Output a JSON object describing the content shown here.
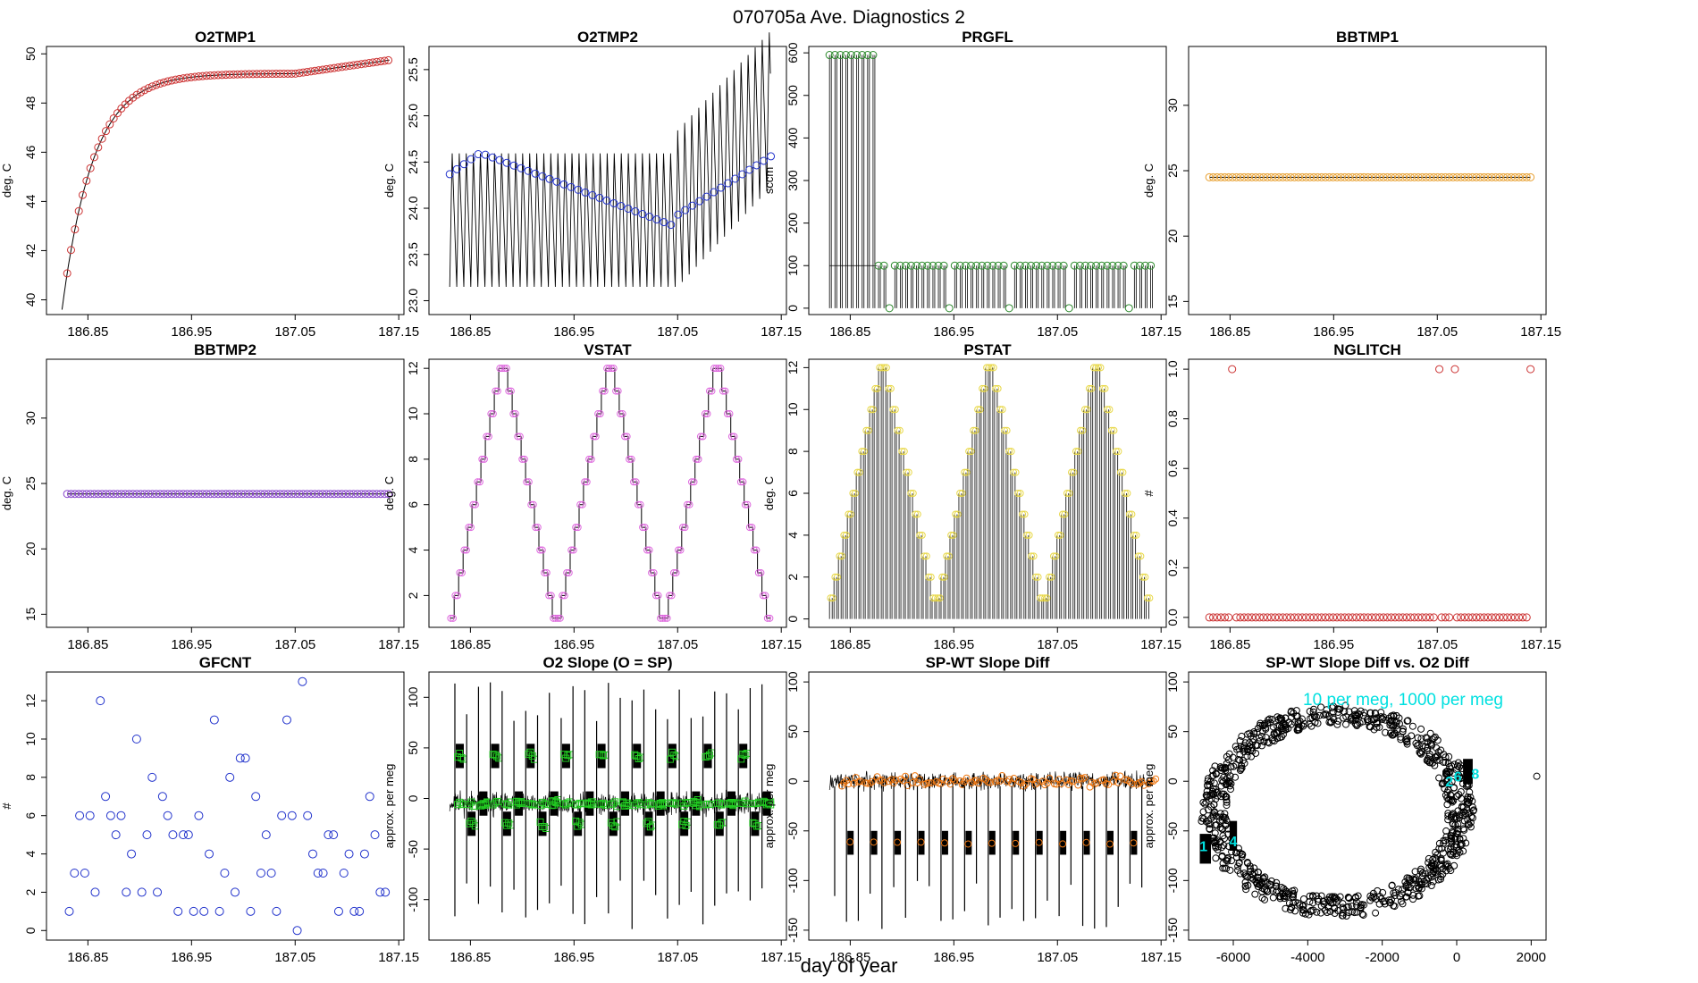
{
  "page": {
    "title": "070705a   Ave. Diagnostics 2",
    "xlabel": "day of year"
  },
  "chart_data": [
    {
      "id": "o2tmp1",
      "type": "line",
      "title": "O2TMP1",
      "ylabel": "deg. C",
      "xlim": [
        186.81,
        187.155
      ],
      "ylim": [
        39.4,
        50.3
      ],
      "xticks": [
        186.85,
        186.95,
        187.05,
        187.15
      ],
      "xticklabels": [
        "186.85",
        "186.95",
        "187.05",
        "187.15"
      ],
      "yticks": [
        40,
        42,
        44,
        46,
        48,
        50
      ],
      "yticklabels": [
        "40",
        "42",
        "44",
        "46",
        "48",
        "50"
      ],
      "pointColor": "#cc3333",
      "pointShape": "circle",
      "pointCount": 84,
      "model": "o2tmp1",
      "series": [
        {
          "name": "O2TMP1",
          "x_start": 186.83,
          "x_end": 187.14,
          "y_start": 40.3,
          "y_end": 49.7
        }
      ]
    },
    {
      "id": "o2tmp2",
      "type": "line",
      "title": "O2TMP2",
      "ylabel": "deg. C",
      "xlim": [
        186.81,
        187.155
      ],
      "ylim": [
        22.85,
        25.75
      ],
      "xticks": [
        186.85,
        186.95,
        187.05,
        187.15
      ],
      "xticklabels": [
        "186.85",
        "186.95",
        "187.05",
        "187.15"
      ],
      "yticks": [
        23.0,
        23.5,
        24.0,
        24.5,
        25.0,
        25.5
      ],
      "yticklabels": [
        "23.0",
        "23.5",
        "24.0",
        "24.5",
        "25.0",
        "25.5"
      ],
      "pointColor": "#2233cc",
      "pointShape": "circle",
      "pointCount": 46,
      "model": "o2tmp2",
      "series": [
        {
          "name": "O2TMP2",
          "x_start": 186.83,
          "x_end": 187.14,
          "y_min": 22.9,
          "y_max": 25.6
        }
      ]
    },
    {
      "id": "prgfl",
      "type": "line",
      "title": "PRGFL",
      "ylabel": "sccm",
      "xlim": [
        186.81,
        187.155
      ],
      "ylim": [
        -15,
        615
      ],
      "xticks": [
        186.85,
        186.95,
        187.05,
        187.15
      ],
      "xticklabels": [
        "186.85",
        "186.95",
        "187.05",
        "187.15"
      ],
      "yticks": [
        0,
        100,
        200,
        300,
        400,
        500,
        600
      ],
      "yticklabels": [
        "0",
        "100",
        "200",
        "300",
        "400",
        "500",
        "600"
      ],
      "pointColor": "#2e8b2e",
      "pointShape": "circle",
      "pointCount": 60,
      "model": "prgfl",
      "series": [
        {
          "name": "PRGFL",
          "high_phase": [
            186.83,
            186.875
          ],
          "high_value": 595,
          "low_value": 100
        }
      ]
    },
    {
      "id": "bbtmp1",
      "type": "scatter",
      "title": "BBTMP1",
      "ylabel": "deg. C",
      "xlim": [
        186.81,
        187.155
      ],
      "ylim": [
        14,
        34.5
      ],
      "xticks": [
        186.85,
        186.95,
        187.05,
        187.15
      ],
      "xticklabels": [
        "186.85",
        "186.95",
        "187.05",
        "187.15"
      ],
      "yticks": [
        15,
        20,
        25,
        30
      ],
      "yticklabels": [
        "15",
        "20",
        "25",
        "30"
      ],
      "pointColor": "#e8a030",
      "pointShape": "circle",
      "pointCount": 84,
      "model": "flat",
      "series": [
        {
          "name": "BBTMP1",
          "value": 24.5
        }
      ]
    },
    {
      "id": "bbtmp2",
      "type": "scatter",
      "title": "BBTMP2",
      "ylabel": "deg. C",
      "xlim": [
        186.81,
        187.155
      ],
      "ylim": [
        14,
        34.5
      ],
      "xticks": [
        186.85,
        186.95,
        187.05,
        187.15
      ],
      "xticklabels": [
        "186.85",
        "186.95",
        "187.05",
        "187.15"
      ],
      "yticks": [
        15,
        20,
        25,
        30
      ],
      "yticklabels": [
        "15",
        "20",
        "25",
        "30"
      ],
      "pointColor": "#8844cc",
      "pointShape": "circle",
      "pointCount": 84,
      "model": "flat",
      "series": [
        {
          "name": "BBTMP2",
          "value": 24.2
        }
      ]
    },
    {
      "id": "vstat",
      "type": "line",
      "title": "VSTAT",
      "ylabel": "deg. C",
      "xlim": [
        186.81,
        187.155
      ],
      "ylim": [
        0.6,
        12.4
      ],
      "xticks": [
        186.85,
        186.95,
        187.05,
        187.15
      ],
      "xticklabels": [
        "186.85",
        "186.95",
        "187.05",
        "187.15"
      ],
      "yticks": [
        2,
        4,
        6,
        8,
        10,
        12
      ],
      "yticklabels": [
        "2",
        "4",
        "6",
        "8",
        "10",
        "12"
      ],
      "pointColor": "#dd66dd",
      "pointShape": "circle",
      "pointCount": 72,
      "model": "vstat",
      "series": [
        {
          "name": "VSTAT",
          "cycle_start": 186.83,
          "cycle_length": 0.104,
          "min": 1,
          "max": 12
        }
      ]
    },
    {
      "id": "pstat",
      "type": "line",
      "title": "PSTAT",
      "ylabel": "deg. C",
      "xlim": [
        186.81,
        187.155
      ],
      "ylim": [
        -0.4,
        12.4
      ],
      "xticks": [
        186.85,
        186.95,
        187.05,
        187.15
      ],
      "xticklabels": [
        "186.85",
        "186.95",
        "187.05",
        "187.15"
      ],
      "yticks": [
        0,
        2,
        4,
        6,
        8,
        10,
        12
      ],
      "yticklabels": [
        "0",
        "2",
        "4",
        "6",
        "8",
        "10",
        "12"
      ],
      "pointColor": "#e8d84a",
      "pointShape": "circle",
      "pointCount": 72,
      "model": "pstat",
      "series": [
        {
          "name": "PSTAT",
          "cycle_start": 186.83,
          "cycle_length": 0.104,
          "min": 0,
          "max": 12
        }
      ]
    },
    {
      "id": "nglitch",
      "type": "scatter",
      "title": "NGLITCH",
      "ylabel": "#",
      "xlim": [
        186.81,
        187.155
      ],
      "ylim": [
        -0.04,
        1.04
      ],
      "xticks": [
        186.85,
        186.95,
        187.05,
        187.15
      ],
      "xticklabels": [
        "186.85",
        "186.95",
        "187.05",
        "187.15"
      ],
      "yticks": [
        0.0,
        0.2,
        0.4,
        0.6,
        0.8,
        1.0
      ],
      "yticklabels": [
        "0.0",
        "0.2",
        "0.4",
        "0.6",
        "0.8",
        "1.0"
      ],
      "pointColor": "#cc3333",
      "pointShape": "circle",
      "pointCount": 84,
      "model": "nglitch",
      "series": [
        {
          "name": "NGLITCH",
          "ones_at": [
            186.852,
            187.052,
            187.067,
            187.14
          ]
        }
      ]
    },
    {
      "id": "gfcnt",
      "type": "scatter",
      "title": "GFCNT",
      "ylabel": "#",
      "xlim": [
        186.81,
        187.155
      ],
      "ylim": [
        -0.5,
        13.5
      ],
      "xticks": [
        186.85,
        186.95,
        187.05,
        187.15
      ],
      "xticklabels": [
        "186.85",
        "186.95",
        "187.05",
        "187.15"
      ],
      "yticks": [
        0,
        2,
        4,
        6,
        8,
        10,
        12
      ],
      "yticklabels": [
        "0",
        "2",
        "4",
        "6",
        "8",
        "10",
        "12"
      ],
      "pointColor": "#2233cc",
      "pointShape": "circle",
      "model": "points",
      "series": [
        {
          "name": "GFCNT",
          "x": [
            186.832,
            186.837,
            186.842,
            186.847,
            186.852,
            186.857,
            186.862,
            186.867,
            186.872,
            186.877,
            186.882,
            186.887,
            186.892,
            186.897,
            186.902,
            186.907,
            186.912,
            186.917,
            186.922,
            186.927,
            186.932,
            186.937,
            186.942,
            186.947,
            186.952,
            186.957,
            186.962,
            186.967,
            186.972,
            186.977,
            186.982,
            186.987,
            186.992,
            186.997,
            187.002,
            187.007,
            187.012,
            187.017,
            187.022,
            187.027,
            187.032,
            187.037,
            187.042,
            187.047,
            187.052,
            187.057,
            187.062,
            187.067,
            187.072,
            187.077,
            187.082,
            187.087,
            187.092,
            187.097,
            187.102,
            187.107,
            187.112,
            187.117,
            187.122,
            187.127,
            187.132,
            187.137
          ],
          "y": [
            1,
            3,
            6,
            3,
            6,
            2,
            12,
            7,
            6,
            5,
            6,
            2,
            4,
            10,
            2,
            5,
            8,
            2,
            7,
            6,
            5,
            1,
            5,
            5,
            1,
            6,
            1,
            4,
            11,
            1,
            3,
            8,
            2,
            9,
            9,
            1,
            7,
            3,
            5,
            3,
            1,
            6,
            11,
            6,
            0,
            13,
            6,
            4,
            3,
            3,
            5,
            5,
            1,
            3,
            4,
            1,
            1,
            4,
            7,
            5,
            2,
            2
          ]
        }
      ]
    },
    {
      "id": "o2slope",
      "type": "line",
      "title": "O2 Slope (O = SP)",
      "ylabel": "approx. per meg",
      "xlim": [
        186.81,
        187.155
      ],
      "ylim": [
        -140,
        125
      ],
      "xticks": [
        186.85,
        186.95,
        187.05,
        187.15
      ],
      "xticklabels": [
        "186.85",
        "186.95",
        "187.05",
        "187.15"
      ],
      "yticks": [
        -100,
        -50,
        0,
        50,
        100
      ],
      "yticklabels": [
        "-100",
        "-50",
        "0",
        "50",
        "100"
      ],
      "pointColor": "#22cc22",
      "pointShape": "square",
      "model": "o2slope",
      "series": [
        {
          "name": "O2 Slope",
          "levels": [
            -5,
            42,
            -25
          ]
        }
      ]
    },
    {
      "id": "spwt",
      "type": "line",
      "title": "SP-WT Slope Diff",
      "ylabel": "approx. per meg",
      "xlim": [
        186.81,
        187.155
      ],
      "ylim": [
        -160,
        110
      ],
      "xticks": [
        186.85,
        186.95,
        187.05,
        187.15
      ],
      "xticklabels": [
        "186.85",
        "186.95",
        "187.05",
        "187.15"
      ],
      "yticks": [
        -150,
        -100,
        -50,
        0,
        50,
        100
      ],
      "yticklabels": [
        "-150",
        "-100",
        "-50",
        "0",
        "50",
        "100"
      ],
      "pointColor": "#ee7711",
      "pointShape": "circle",
      "model": "spwt",
      "series": [
        {
          "name": "SP-WT",
          "upper_level": 0,
          "lower_level": -62
        }
      ]
    },
    {
      "id": "spwt_vs_o2",
      "type": "scatter",
      "title": "SP-WT Slope Diff vs. O2 Diff",
      "ylabel": "approx. per meg",
      "xlim": [
        -7200,
        2400
      ],
      "ylim": [
        -160,
        110
      ],
      "xticks": [
        -6000,
        -4000,
        -2000,
        0,
        2000
      ],
      "xticklabels": [
        "-6000",
        "-4000",
        "-2000",
        "0",
        "2000"
      ],
      "yticks": [
        -150,
        -100,
        -50,
        0,
        50,
        100
      ],
      "yticklabels": [
        "-150",
        "-100",
        "-50",
        "0",
        "50",
        "100"
      ],
      "pointColor": "#000000",
      "pointShape": "circle",
      "model": "ring",
      "series": [
        {
          "name": "ring",
          "center_x": -3200,
          "center_y": -30,
          "radius_x": 3600,
          "radius_y": 105
        }
      ],
      "annotation": "10 per meg, 1000 per meg",
      "annotationColor": "#00e0e0",
      "cluster_labels": [
        {
          "text": "2",
          "x": -200,
          "y": 0
        },
        {
          "text": "8",
          "x": 500,
          "y": 8
        },
        {
          "text": "6",
          "x": 30,
          "y": 5
        },
        {
          "text": "1",
          "x": -6800,
          "y": -65
        },
        {
          "text": "4",
          "x": -6000,
          "y": -60
        }
      ]
    }
  ]
}
